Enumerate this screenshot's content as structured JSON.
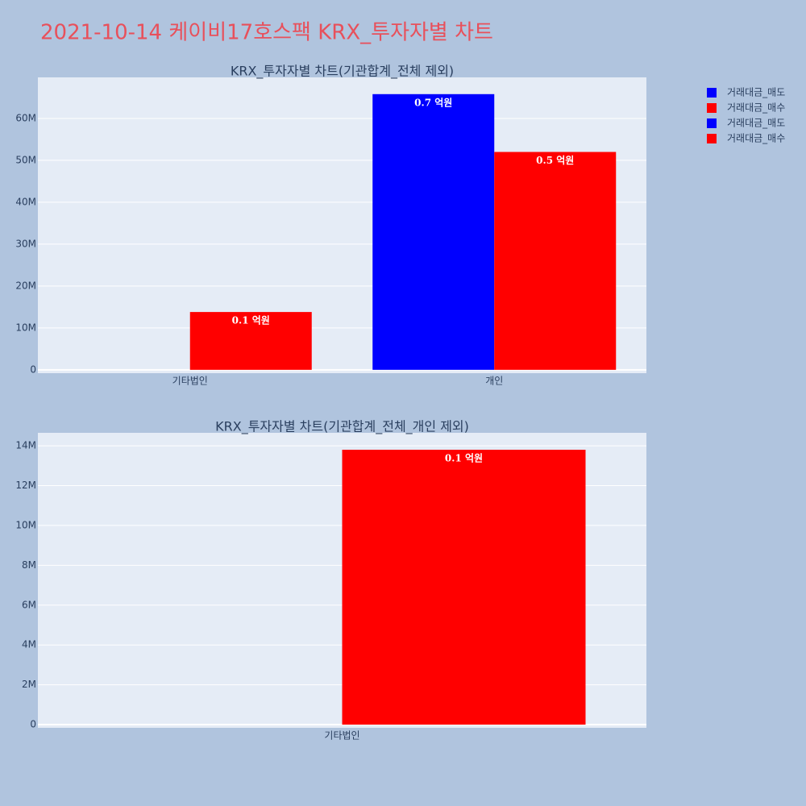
{
  "title": "2021-10-14 케이비17호스팩 KRX_투자자별 차트",
  "chart_data": [
    {
      "type": "bar",
      "title": "KRX_투자자별 차트(기관합계_전체 제외)",
      "categories": [
        "기타법인",
        "개인"
      ],
      "series": [
        {
          "name": "거래대금_매도",
          "color": "#0000ff",
          "values": [
            null,
            65800000
          ],
          "value_labels": [
            null,
            "0.7 억원"
          ]
        },
        {
          "name": "거래대금_매수",
          "color": "#ff0000",
          "values": [
            13800000,
            52000000
          ],
          "value_labels": [
            "0.1 억원",
            "0.5 억원"
          ]
        }
      ],
      "ylim": [
        -800000,
        69800000
      ],
      "yticks": [
        0,
        {
          "value": 10000000,
          "label": "10M"
        },
        {
          "value": 20000000,
          "label": "20M"
        },
        {
          "value": 30000000,
          "label": "30M"
        },
        {
          "value": 40000000,
          "label": "40M"
        },
        {
          "value": 50000000,
          "label": "50M"
        },
        {
          "value": 60000000,
          "label": "60M"
        }
      ],
      "grid": true
    },
    {
      "type": "bar",
      "title": "KRX_투자자별 차트(기관합계_전체_개인 제외)",
      "categories": [
        "기타법인"
      ],
      "series": [
        {
          "name": "거래대금_매도",
          "color": "#0000ff",
          "values": [
            null
          ],
          "value_labels": [
            null
          ]
        },
        {
          "name": "거래대금_매수",
          "color": "#ff0000",
          "values": [
            13800000
          ],
          "value_labels": [
            "0.1 억원"
          ]
        }
      ],
      "ylim": [
        -160000,
        14650000
      ],
      "yticks": [
        0,
        {
          "value": 2000000,
          "label": "2M"
        },
        {
          "value": 4000000,
          "label": "4M"
        },
        {
          "value": 6000000,
          "label": "6M"
        },
        {
          "value": 8000000,
          "label": "8M"
        },
        {
          "value": 10000000,
          "label": "10M"
        },
        {
          "value": 12000000,
          "label": "12M"
        },
        {
          "value": 14000000,
          "label": "14M"
        }
      ],
      "grid": true
    }
  ]
}
